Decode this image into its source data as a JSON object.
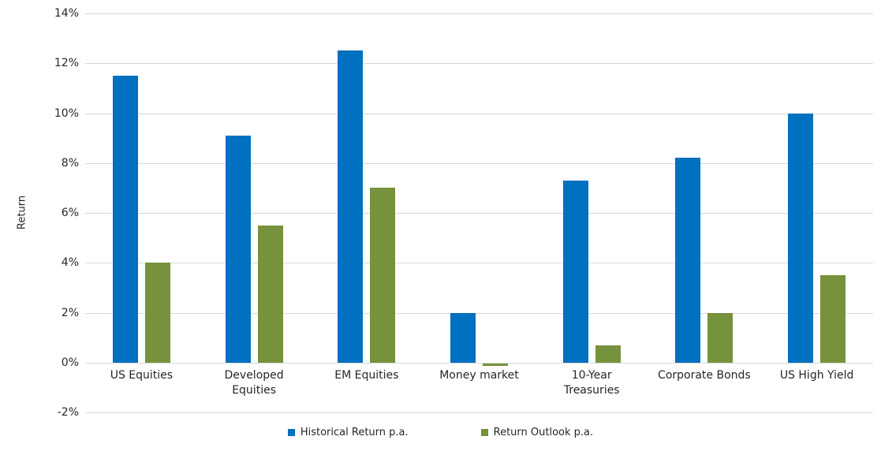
{
  "chart_data": {
    "type": "bar",
    "title": "",
    "ylabel": "Return",
    "xlabel": "",
    "categories": [
      "US Equities",
      "Developed Equities",
      "EM Equities",
      "Money market",
      "10-Year Treasuries",
      "Corporate Bonds",
      "US High Yield"
    ],
    "series": [
      {
        "name": "Historical Return p.a.",
        "color": "#0070C0",
        "values": [
          11.5,
          9.1,
          12.5,
          2.0,
          7.3,
          8.2,
          10.0
        ]
      },
      {
        "name": "Return Outlook p.a.",
        "color": "#76923C",
        "values": [
          4.0,
          5.5,
          7.0,
          -0.1,
          0.7,
          2.0,
          3.5
        ]
      }
    ],
    "ylim": [
      -2,
      14
    ],
    "ytick_values": [
      14,
      12,
      10,
      8,
      6,
      4,
      2,
      0,
      -2
    ],
    "ytick_labels": [
      "14%",
      "12%",
      "10%",
      "8%",
      "6%",
      "4%",
      "2%",
      "0%",
      "-2%"
    ],
    "grid": true,
    "legend_position": "bottom",
    "colors": {
      "grid": "#D9D9D9",
      "text": "#262626",
      "background": "#FFFFFF"
    }
  }
}
